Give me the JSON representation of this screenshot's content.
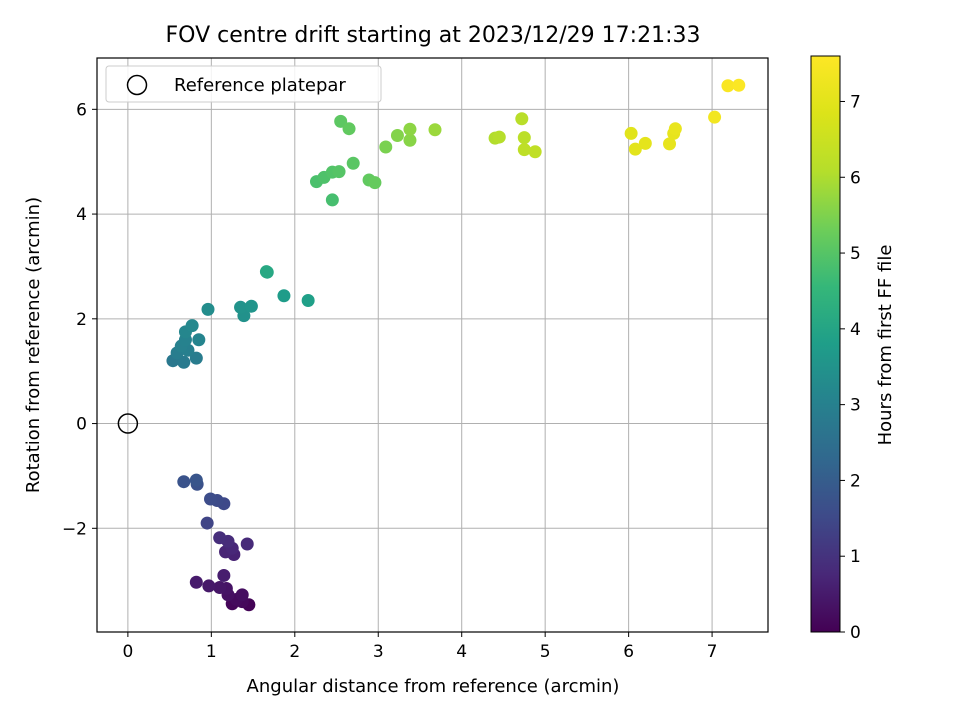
{
  "chart_data": {
    "type": "scatter",
    "title": "FOV centre drift starting at 2023/12/29 17:21:33",
    "xlabel": "Angular distance from reference (arcmin)",
    "ylabel": "Rotation from reference (arcmin)",
    "xlim": [
      -0.37,
      7.67
    ],
    "ylim": [
      -3.98,
      6.98
    ],
    "xticks": [
      0,
      1,
      2,
      3,
      4,
      5,
      6,
      7
    ],
    "yticks": [
      -2,
      0,
      2,
      4,
      6
    ],
    "ytick_labels": [
      "−2",
      "0",
      "2",
      "4",
      "6"
    ],
    "grid": true,
    "legend": {
      "placement": "upper-left",
      "entries": [
        "Reference platepar"
      ]
    },
    "colorbar": {
      "label": "Hours from first FF file",
      "min": 0,
      "max": 7.6,
      "ticks": [
        0,
        1,
        2,
        3,
        4,
        5,
        6,
        7
      ],
      "colormap": "viridis"
    },
    "reference": {
      "x": 0,
      "y": 0
    },
    "points": [
      {
        "x": 1.45,
        "y": -3.46,
        "c": 0.05
      },
      {
        "x": 1.25,
        "y": -3.44,
        "c": 0.1
      },
      {
        "x": 1.37,
        "y": -3.4,
        "c": 0.15
      },
      {
        "x": 1.3,
        "y": -3.36,
        "c": 0.2
      },
      {
        "x": 1.37,
        "y": -3.27,
        "c": 0.25
      },
      {
        "x": 1.2,
        "y": -3.27,
        "c": 0.3
      },
      {
        "x": 1.18,
        "y": -3.15,
        "c": 0.35
      },
      {
        "x": 1.1,
        "y": -3.13,
        "c": 0.4
      },
      {
        "x": 0.97,
        "y": -3.1,
        "c": 0.45
      },
      {
        "x": 0.82,
        "y": -3.03,
        "c": 0.5
      },
      {
        "x": 1.15,
        "y": -2.9,
        "c": 0.55
      },
      {
        "x": 1.27,
        "y": -2.5,
        "c": 0.65
      },
      {
        "x": 1.17,
        "y": -2.45,
        "c": 0.7
      },
      {
        "x": 1.25,
        "y": -2.38,
        "c": 0.75
      },
      {
        "x": 1.43,
        "y": -2.3,
        "c": 0.8
      },
      {
        "x": 1.2,
        "y": -2.25,
        "c": 0.85
      },
      {
        "x": 1.1,
        "y": -2.18,
        "c": 0.9
      },
      {
        "x": 0.95,
        "y": -1.9,
        "c": 1.4
      },
      {
        "x": 1.15,
        "y": -1.53,
        "c": 1.5
      },
      {
        "x": 1.07,
        "y": -1.47,
        "c": 1.55
      },
      {
        "x": 0.99,
        "y": -1.44,
        "c": 1.6
      },
      {
        "x": 0.83,
        "y": -1.16,
        "c": 1.7
      },
      {
        "x": 0.67,
        "y": -1.11,
        "c": 1.75
      },
      {
        "x": 0.82,
        "y": -1.08,
        "c": 1.8
      },
      {
        "x": 0.54,
        "y": 1.2,
        "c": 2.75
      },
      {
        "x": 0.67,
        "y": 1.17,
        "c": 2.8
      },
      {
        "x": 0.82,
        "y": 1.25,
        "c": 2.85
      },
      {
        "x": 0.59,
        "y": 1.35,
        "c": 2.9
      },
      {
        "x": 0.72,
        "y": 1.4,
        "c": 2.95
      },
      {
        "x": 0.64,
        "y": 1.48,
        "c": 3.0
      },
      {
        "x": 0.69,
        "y": 1.6,
        "c": 3.05
      },
      {
        "x": 0.85,
        "y": 1.6,
        "c": 3.1
      },
      {
        "x": 0.69,
        "y": 1.75,
        "c": 3.15
      },
      {
        "x": 0.77,
        "y": 1.87,
        "c": 3.2
      },
      {
        "x": 0.96,
        "y": 2.18,
        "c": 3.35
      },
      {
        "x": 1.39,
        "y": 2.06,
        "c": 3.45
      },
      {
        "x": 1.35,
        "y": 2.22,
        "c": 3.5
      },
      {
        "x": 1.48,
        "y": 2.24,
        "c": 3.55
      },
      {
        "x": 1.87,
        "y": 2.44,
        "c": 3.75
      },
      {
        "x": 2.16,
        "y": 2.35,
        "c": 3.85
      },
      {
        "x": 1.67,
        "y": 2.89,
        "c": 4.05
      },
      {
        "x": 1.66,
        "y": 2.9,
        "c": 4.1
      },
      {
        "x": 2.45,
        "y": 4.27,
        "c": 4.8
      },
      {
        "x": 2.26,
        "y": 4.62,
        "c": 4.85
      },
      {
        "x": 2.35,
        "y": 4.7,
        "c": 4.9
      },
      {
        "x": 2.45,
        "y": 4.8,
        "c": 4.95
      },
      {
        "x": 2.53,
        "y": 4.81,
        "c": 5.0
      },
      {
        "x": 2.7,
        "y": 4.97,
        "c": 5.05
      },
      {
        "x": 2.89,
        "y": 4.65,
        "c": 5.15
      },
      {
        "x": 2.96,
        "y": 4.6,
        "c": 5.2
      },
      {
        "x": 2.55,
        "y": 5.77,
        "c": 5.1
      },
      {
        "x": 2.65,
        "y": 5.63,
        "c": 5.15
      },
      {
        "x": 3.09,
        "y": 5.28,
        "c": 5.45
      },
      {
        "x": 3.23,
        "y": 5.5,
        "c": 5.55
      },
      {
        "x": 3.38,
        "y": 5.41,
        "c": 5.6
      },
      {
        "x": 3.38,
        "y": 5.62,
        "c": 5.65
      },
      {
        "x": 3.68,
        "y": 5.61,
        "c": 5.8
      },
      {
        "x": 4.4,
        "y": 5.45,
        "c": 6.05
      },
      {
        "x": 4.45,
        "y": 5.47,
        "c": 6.1
      },
      {
        "x": 4.72,
        "y": 5.82,
        "c": 6.15
      },
      {
        "x": 4.75,
        "y": 5.46,
        "c": 6.2
      },
      {
        "x": 4.75,
        "y": 5.23,
        "c": 6.25
      },
      {
        "x": 4.88,
        "y": 5.19,
        "c": 6.3
      },
      {
        "x": 6.03,
        "y": 5.54,
        "c": 6.95
      },
      {
        "x": 6.08,
        "y": 5.24,
        "c": 7.0
      },
      {
        "x": 6.2,
        "y": 5.35,
        "c": 7.05
      },
      {
        "x": 6.49,
        "y": 5.34,
        "c": 7.1
      },
      {
        "x": 6.54,
        "y": 5.54,
        "c": 7.1
      },
      {
        "x": 6.56,
        "y": 5.63,
        "c": 7.15
      },
      {
        "x": 7.03,
        "y": 5.85,
        "c": 7.35
      },
      {
        "x": 7.19,
        "y": 6.45,
        "c": 7.5
      },
      {
        "x": 7.32,
        "y": 6.46,
        "c": 7.55
      }
    ]
  }
}
